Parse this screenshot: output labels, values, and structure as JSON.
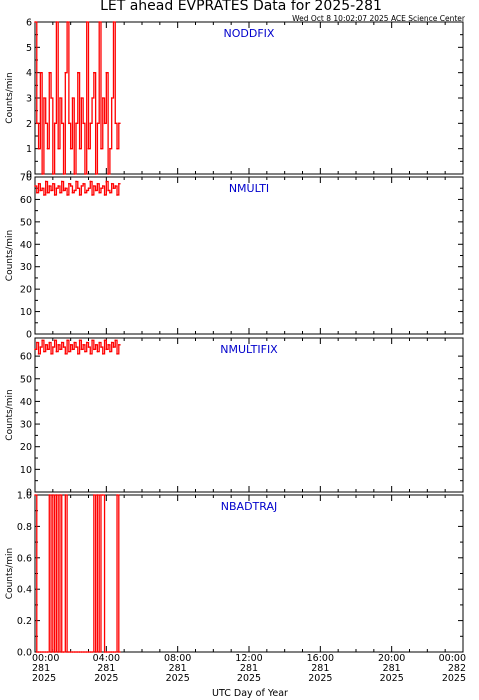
{
  "title": "LET ahead EVPRATES Data for 2025-281",
  "timestamp": "Wed Oct  8 10:02:07 2025 ACE Science Center",
  "xlabel": "UTC Day of Year",
  "x_ticks": [
    {
      "time": "00:00",
      "day": "281",
      "year": "2025"
    },
    {
      "time": "04:00",
      "day": "281",
      "year": "2025"
    },
    {
      "time": "08:00",
      "day": "281",
      "year": "2025"
    },
    {
      "time": "12:00",
      "day": "281",
      "year": "2025"
    },
    {
      "time": "16:00",
      "day": "281",
      "year": "2025"
    },
    {
      "time": "20:00",
      "day": "281",
      "year": "2025"
    },
    {
      "time": "00:00",
      "day": "282",
      "year": "2025"
    }
  ],
  "colors": {
    "series": "#ff0000",
    "panel_label": "#0000cc",
    "axes": "#000000"
  },
  "chart_data": [
    {
      "type": "line",
      "title": "NODDFIX",
      "ylabel": "Counts/min",
      "xlim": [
        0,
        24
      ],
      "ylim": [
        0,
        6
      ],
      "yticks": [
        0,
        1,
        2,
        3,
        4,
        5,
        6
      ],
      "ytick_labels": [
        "0",
        "1",
        "2",
        "3",
        "4",
        "5",
        "6"
      ],
      "x": [
        0.0,
        0.1,
        0.2,
        0.3,
        0.4,
        0.5,
        0.6,
        0.7,
        0.8,
        0.9,
        1.0,
        1.1,
        1.2,
        1.3,
        1.4,
        1.5,
        1.6,
        1.7,
        1.8,
        1.9,
        2.0,
        2.1,
        2.2,
        2.3,
        2.4,
        2.5,
        2.6,
        2.7,
        2.8,
        2.9,
        3.0,
        3.1,
        3.2,
        3.3,
        3.4,
        3.5,
        3.6,
        3.7,
        3.8,
        3.9,
        4.0,
        4.1,
        4.2,
        4.3,
        4.4,
        4.5,
        4.6,
        4.7
      ],
      "values": [
        6,
        2,
        1,
        4,
        0,
        3,
        2,
        1,
        4,
        3,
        0,
        2,
        6,
        1,
        3,
        2,
        0,
        4,
        6,
        2,
        1,
        3,
        0,
        2,
        4,
        1,
        3,
        2,
        0,
        6,
        1,
        2,
        3,
        4,
        0,
        2,
        6,
        1,
        3,
        2,
        4,
        0,
        1,
        3,
        6,
        2,
        1,
        2
      ]
    },
    {
      "type": "line",
      "title": "NMULTI",
      "ylabel": "Counts/min",
      "xlim": [
        0,
        24
      ],
      "ylim": [
        0,
        70
      ],
      "yticks": [
        0,
        10,
        20,
        30,
        40,
        50,
        60,
        70
      ],
      "ytick_labels": [
        "0",
        "10",
        "20",
        "30",
        "40",
        "50",
        "60",
        "70"
      ],
      "x": [
        0.0,
        0.1,
        0.2,
        0.3,
        0.4,
        0.5,
        0.6,
        0.7,
        0.8,
        0.9,
        1.0,
        1.1,
        1.2,
        1.3,
        1.4,
        1.5,
        1.6,
        1.7,
        1.8,
        1.9,
        2.0,
        2.1,
        2.2,
        2.3,
        2.4,
        2.5,
        2.6,
        2.7,
        2.8,
        2.9,
        3.0,
        3.1,
        3.2,
        3.3,
        3.4,
        3.5,
        3.6,
        3.7,
        3.8,
        3.9,
        4.0,
        4.1,
        4.2,
        4.3,
        4.4,
        4.5,
        4.6,
        4.7
      ],
      "values": [
        66,
        63,
        67,
        64,
        65,
        62,
        68,
        63,
        66,
        64,
        67,
        62,
        65,
        66,
        63,
        68,
        64,
        65,
        62,
        67,
        66,
        63,
        64,
        68,
        65,
        62,
        66,
        67,
        63,
        64,
        65,
        68,
        62,
        66,
        64,
        67,
        63,
        65,
        66,
        62,
        68,
        64,
        63,
        67,
        65,
        66,
        62,
        67
      ]
    },
    {
      "type": "line",
      "title": "NMULTIFIX",
      "ylabel": "Counts/min",
      "xlim": [
        0,
        24
      ],
      "ylim": [
        0,
        68
      ],
      "yticks": [
        0,
        10,
        20,
        30,
        40,
        50,
        60
      ],
      "ytick_labels": [
        "0",
        "10",
        "20",
        "30",
        "40",
        "50",
        "60"
      ],
      "x": [
        0.0,
        0.1,
        0.2,
        0.3,
        0.4,
        0.5,
        0.6,
        0.7,
        0.8,
        0.9,
        1.0,
        1.1,
        1.2,
        1.3,
        1.4,
        1.5,
        1.6,
        1.7,
        1.8,
        1.9,
        2.0,
        2.1,
        2.2,
        2.3,
        2.4,
        2.5,
        2.6,
        2.7,
        2.8,
        2.9,
        3.0,
        3.1,
        3.2,
        3.3,
        3.4,
        3.5,
        3.6,
        3.7,
        3.8,
        3.9,
        4.0,
        4.1,
        4.2,
        4.3,
        4.4,
        4.5,
        4.6,
        4.7
      ],
      "values": [
        63,
        66,
        61,
        64,
        67,
        62,
        65,
        63,
        66,
        61,
        64,
        67,
        62,
        65,
        63,
        66,
        64,
        61,
        67,
        62,
        65,
        63,
        66,
        64,
        61,
        67,
        63,
        65,
        62,
        66,
        64,
        61,
        67,
        63,
        65,
        62,
        66,
        64,
        61,
        67,
        63,
        65,
        62,
        66,
        64,
        67,
        61,
        65
      ]
    },
    {
      "type": "line",
      "title": "NBADTRAJ",
      "ylabel": "Counts/min",
      "xlim": [
        0,
        24
      ],
      "ylim": [
        0,
        1
      ],
      "yticks": [
        0,
        0.2,
        0.4,
        0.6,
        0.8,
        1.0
      ],
      "ytick_labels": [
        "0.0",
        "0.2",
        "0.4",
        "0.6",
        "0.8",
        "1.0"
      ],
      "x": [
        0.0,
        0.1,
        0.2,
        0.3,
        0.4,
        0.5,
        0.6,
        0.7,
        0.8,
        0.9,
        1.0,
        1.1,
        1.2,
        1.3,
        1.4,
        1.5,
        1.6,
        1.7,
        1.8,
        1.9,
        2.0,
        2.1,
        2.2,
        2.3,
        2.4,
        2.5,
        2.6,
        2.7,
        2.8,
        2.9,
        3.0,
        3.1,
        3.2,
        3.3,
        3.4,
        3.5,
        3.6,
        3.7,
        3.8,
        3.9,
        4.0,
        4.1,
        4.2,
        4.3,
        4.4,
        4.5,
        4.6,
        4.7
      ],
      "values": [
        1,
        0,
        0,
        0,
        0,
        0,
        0,
        0,
        1,
        0,
        1,
        0,
        1,
        0,
        1,
        0,
        0,
        1,
        0,
        0,
        0,
        0,
        0,
        0,
        0,
        0,
        0,
        0,
        0,
        0,
        0,
        0,
        0,
        1,
        0,
        1,
        0,
        1,
        1,
        0,
        0,
        0,
        0,
        0,
        0,
        0,
        1,
        0
      ]
    }
  ]
}
